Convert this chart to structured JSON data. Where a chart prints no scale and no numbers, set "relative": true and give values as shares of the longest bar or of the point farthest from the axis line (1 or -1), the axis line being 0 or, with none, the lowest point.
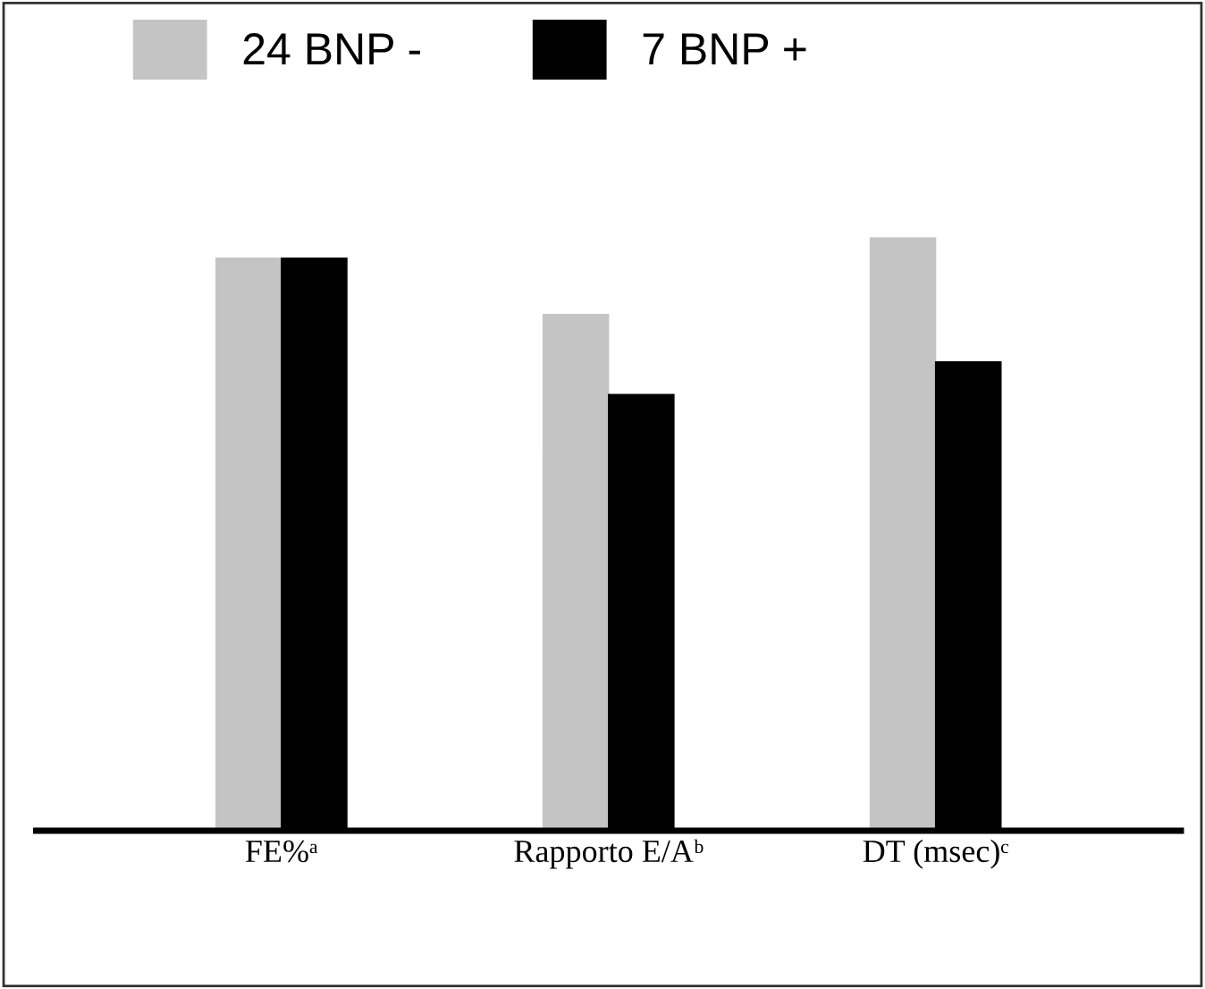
{
  "chart_data": {
    "type": "bar",
    "relative": true,
    "legend": "top",
    "categories": [
      "FE%ᵃ",
      "Rapporto E/Aᵇ",
      "DT (msec)ᶜ"
    ],
    "series": [
      {
        "name": "24 BNP -",
        "color": "#c4c4c4",
        "values": [
          0.965,
          0.87,
          1
        ]
      },
      {
        "name": "7 BNP +",
        "color": "#000000",
        "values": [
          0.965,
          0.735,
          0.79
        ]
      }
    ]
  }
}
